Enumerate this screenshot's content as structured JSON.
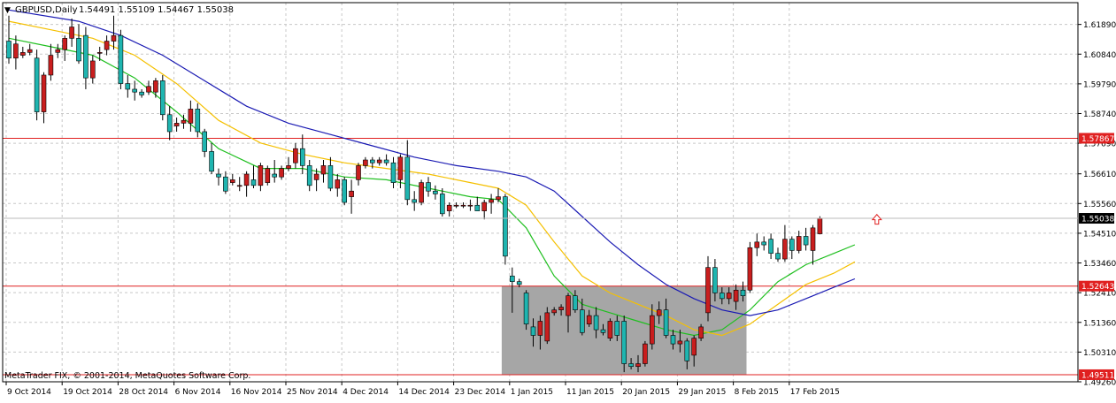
{
  "header": {
    "symbol": "GBPUSD,Daily",
    "quote": "1.54491 1.55109 1.54467 1.55038",
    "menu_glyph": "▼"
  },
  "footer": {
    "copyright": "MetaTrader FIX, © 2001-2014, MetaQuotes Software Corp."
  },
  "price_axis": {
    "ticks": [
      "1.61890",
      "1.60840",
      "1.59790",
      "1.58740",
      "1.57690",
      "1.56610",
      "1.55560",
      "1.54510",
      "1.53460",
      "1.52410",
      "1.51360",
      "1.50310",
      "1.49260"
    ],
    "tick_values": [
      1.6189,
      1.6084,
      1.5979,
      1.5874,
      1.5769,
      1.5661,
      1.5556,
      1.5451,
      1.5346,
      1.5241,
      1.5136,
      1.5031,
      1.4926
    ]
  },
  "time_axis": {
    "ticks": [
      "9 Oct 2014",
      "19 Oct 2014",
      "28 Oct 2014",
      "6 Nov 2014",
      "16 Nov 2014",
      "25 Nov 2014",
      "4 Dec 2014",
      "14 Dec 2014",
      "23 Dec 2014",
      "1 Jan 2015",
      "11 Jan 2015",
      "20 Jan 2015",
      "29 Jan 2015",
      "8 Feb 2015",
      "17 Feb 2015"
    ]
  },
  "levels": [
    {
      "name": "resistance",
      "value": 1.57867,
      "label": "1.57867"
    },
    {
      "name": "support",
      "value": 1.52643,
      "label": "1.52643"
    },
    {
      "name": "low",
      "value": 1.49511,
      "label": "1.49511"
    }
  ],
  "current_price": {
    "value": 1.55038,
    "label": "1.55038"
  },
  "colors": {
    "bull": "#c91e1e",
    "bear": "#1fb5b0",
    "ma_fast": "#1fbf1f",
    "ma_mid": "#f5c000",
    "ma_slow": "#1a1ab3",
    "level": "#e02020",
    "grid": "#c8c8c8",
    "zone": "#a6a6a6",
    "arrow": "#e02020"
  },
  "chart_data": {
    "type": "candlestick",
    "symbol": "GBPUSD",
    "timeframe": "Daily",
    "ylim": [
      1.4926,
      1.6266
    ],
    "candles": [
      {
        "o": 1.613,
        "h": 1.622,
        "l": 1.605,
        "c": 1.607
      },
      {
        "o": 1.607,
        "h": 1.615,
        "l": 1.603,
        "c": 1.612
      },
      {
        "o": 1.608,
        "h": 1.611,
        "l": 1.607,
        "c": 1.609
      },
      {
        "o": 1.609,
        "h": 1.612,
        "l": 1.608,
        "c": 1.61
      },
      {
        "o": 1.607,
        "h": 1.61,
        "l": 1.585,
        "c": 1.588
      },
      {
        "o": 1.588,
        "h": 1.602,
        "l": 1.584,
        "c": 1.601
      },
      {
        "o": 1.601,
        "h": 1.612,
        "l": 1.599,
        "c": 1.608
      },
      {
        "o": 1.609,
        "h": 1.612,
        "l": 1.607,
        "c": 1.61
      },
      {
        "o": 1.61,
        "h": 1.615,
        "l": 1.606,
        "c": 1.614
      },
      {
        "o": 1.614,
        "h": 1.621,
        "l": 1.611,
        "c": 1.618
      },
      {
        "o": 1.614,
        "h": 1.619,
        "l": 1.605,
        "c": 1.606
      },
      {
        "o": 1.615,
        "h": 1.618,
        "l": 1.596,
        "c": 1.6
      },
      {
        "o": 1.6,
        "h": 1.608,
        "l": 1.598,
        "c": 1.606
      },
      {
        "o": 1.609,
        "h": 1.611,
        "l": 1.606,
        "c": 1.609
      },
      {
        "o": 1.61,
        "h": 1.615,
        "l": 1.608,
        "c": 1.613
      },
      {
        "o": 1.613,
        "h": 1.622,
        "l": 1.61,
        "c": 1.615
      },
      {
        "o": 1.615,
        "h": 1.617,
        "l": 1.596,
        "c": 1.598
      },
      {
        "o": 1.598,
        "h": 1.601,
        "l": 1.593,
        "c": 1.596
      },
      {
        "o": 1.596,
        "h": 1.599,
        "l": 1.592,
        "c": 1.595
      },
      {
        "o": 1.595,
        "h": 1.596,
        "l": 1.593,
        "c": 1.594
      },
      {
        "o": 1.595,
        "h": 1.599,
        "l": 1.594,
        "c": 1.597
      },
      {
        "o": 1.595,
        "h": 1.6,
        "l": 1.593,
        "c": 1.599
      },
      {
        "o": 1.599,
        "h": 1.601,
        "l": 1.585,
        "c": 1.587
      },
      {
        "o": 1.587,
        "h": 1.59,
        "l": 1.578,
        "c": 1.581
      },
      {
        "o": 1.583,
        "h": 1.586,
        "l": 1.581,
        "c": 1.584
      },
      {
        "o": 1.584,
        "h": 1.587,
        "l": 1.582,
        "c": 1.585
      },
      {
        "o": 1.584,
        "h": 1.592,
        "l": 1.581,
        "c": 1.589
      },
      {
        "o": 1.589,
        "h": 1.591,
        "l": 1.579,
        "c": 1.581
      },
      {
        "o": 1.581,
        "h": 1.582,
        "l": 1.572,
        "c": 1.574
      },
      {
        "o": 1.574,
        "h": 1.577,
        "l": 1.566,
        "c": 1.567
      },
      {
        "o": 1.566,
        "h": 1.568,
        "l": 1.562,
        "c": 1.565
      },
      {
        "o": 1.565,
        "h": 1.567,
        "l": 1.559,
        "c": 1.56
      },
      {
        "o": 1.563,
        "h": 1.566,
        "l": 1.562,
        "c": 1.564
      },
      {
        "o": 1.562,
        "h": 1.565,
        "l": 1.56,
        "c": 1.562
      },
      {
        "o": 1.562,
        "h": 1.567,
        "l": 1.558,
        "c": 1.566
      },
      {
        "o": 1.564,
        "h": 1.569,
        "l": 1.561,
        "c": 1.562
      },
      {
        "o": 1.562,
        "h": 1.57,
        "l": 1.56,
        "c": 1.569
      },
      {
        "o": 1.563,
        "h": 1.569,
        "l": 1.562,
        "c": 1.568
      },
      {
        "o": 1.566,
        "h": 1.571,
        "l": 1.563,
        "c": 1.565
      },
      {
        "o": 1.565,
        "h": 1.569,
        "l": 1.564,
        "c": 1.568
      },
      {
        "o": 1.568,
        "h": 1.572,
        "l": 1.567,
        "c": 1.569
      },
      {
        "o": 1.57,
        "h": 1.577,
        "l": 1.568,
        "c": 1.575
      },
      {
        "o": 1.575,
        "h": 1.58,
        "l": 1.566,
        "c": 1.569
      },
      {
        "o": 1.569,
        "h": 1.571,
        "l": 1.56,
        "c": 1.562
      },
      {
        "o": 1.564,
        "h": 1.568,
        "l": 1.56,
        "c": 1.566
      },
      {
        "o": 1.566,
        "h": 1.571,
        "l": 1.563,
        "c": 1.569
      },
      {
        "o": 1.569,
        "h": 1.572,
        "l": 1.56,
        "c": 1.561
      },
      {
        "o": 1.561,
        "h": 1.566,
        "l": 1.558,
        "c": 1.564
      },
      {
        "o": 1.564,
        "h": 1.565,
        "l": 1.555,
        "c": 1.556
      },
      {
        "o": 1.558,
        "h": 1.564,
        "l": 1.552,
        "c": 1.56
      },
      {
        "o": 1.564,
        "h": 1.57,
        "l": 1.562,
        "c": 1.569
      },
      {
        "o": 1.569,
        "h": 1.572,
        "l": 1.568,
        "c": 1.571
      },
      {
        "o": 1.571,
        "h": 1.572,
        "l": 1.568,
        "c": 1.57
      },
      {
        "o": 1.57,
        "h": 1.572,
        "l": 1.569,
        "c": 1.571
      },
      {
        "o": 1.571,
        "h": 1.573,
        "l": 1.569,
        "c": 1.57
      },
      {
        "o": 1.57,
        "h": 1.572,
        "l": 1.561,
        "c": 1.563
      },
      {
        "o": 1.564,
        "h": 1.573,
        "l": 1.561,
        "c": 1.572
      },
      {
        "o": 1.572,
        "h": 1.578,
        "l": 1.555,
        "c": 1.557
      },
      {
        "o": 1.557,
        "h": 1.56,
        "l": 1.553,
        "c": 1.556
      },
      {
        "o": 1.556,
        "h": 1.564,
        "l": 1.555,
        "c": 1.563
      },
      {
        "o": 1.563,
        "h": 1.565,
        "l": 1.558,
        "c": 1.56
      },
      {
        "o": 1.56,
        "h": 1.562,
        "l": 1.557,
        "c": 1.559
      },
      {
        "o": 1.559,
        "h": 1.561,
        "l": 1.551,
        "c": 1.552
      },
      {
        "o": 1.553,
        "h": 1.556,
        "l": 1.551,
        "c": 1.555
      },
      {
        "o": 1.555,
        "h": 1.556,
        "l": 1.554,
        "c": 1.555
      },
      {
        "o": 1.555,
        "h": 1.556,
        "l": 1.554,
        "c": 1.555
      },
      {
        "o": 1.555,
        "h": 1.557,
        "l": 1.553,
        "c": 1.555
      },
      {
        "o": 1.555,
        "h": 1.558,
        "l": 1.553,
        "c": 1.553
      },
      {
        "o": 1.553,
        "h": 1.557,
        "l": 1.55,
        "c": 1.556
      },
      {
        "o": 1.556,
        "h": 1.559,
        "l": 1.552,
        "c": 1.557
      },
      {
        "o": 1.557,
        "h": 1.561,
        "l": 1.556,
        "c": 1.558
      },
      {
        "o": 1.558,
        "h": 1.559,
        "l": 1.534,
        "c": 1.537
      },
      {
        "o": 1.53,
        "h": 1.533,
        "l": 1.517,
        "c": 1.528
      },
      {
        "o": 1.528,
        "h": 1.529,
        "l": 1.526,
        "c": 1.527
      },
      {
        "o": 1.524,
        "h": 1.525,
        "l": 1.511,
        "c": 1.513
      },
      {
        "o": 1.512,
        "h": 1.515,
        "l": 1.505,
        "c": 1.509
      },
      {
        "o": 1.509,
        "h": 1.516,
        "l": 1.504,
        "c": 1.514
      },
      {
        "o": 1.507,
        "h": 1.519,
        "l": 1.506,
        "c": 1.517
      },
      {
        "o": 1.517,
        "h": 1.519,
        "l": 1.516,
        "c": 1.518
      },
      {
        "o": 1.518,
        "h": 1.52,
        "l": 1.516,
        "c": 1.519
      },
      {
        "o": 1.516,
        "h": 1.524,
        "l": 1.51,
        "c": 1.523
      },
      {
        "o": 1.523,
        "h": 1.525,
        "l": 1.517,
        "c": 1.518
      },
      {
        "o": 1.518,
        "h": 1.522,
        "l": 1.509,
        "c": 1.51
      },
      {
        "o": 1.513,
        "h": 1.518,
        "l": 1.512,
        "c": 1.516
      },
      {
        "o": 1.516,
        "h": 1.519,
        "l": 1.508,
        "c": 1.511
      },
      {
        "o": 1.511,
        "h": 1.513,
        "l": 1.509,
        "c": 1.51
      },
      {
        "o": 1.508,
        "h": 1.515,
        "l": 1.507,
        "c": 1.514
      },
      {
        "o": 1.514,
        "h": 1.516,
        "l": 1.507,
        "c": 1.509
      },
      {
        "o": 1.514,
        "h": 1.516,
        "l": 1.496,
        "c": 1.499
      },
      {
        "o": 1.499,
        "h": 1.501,
        "l": 1.497,
        "c": 1.498
      },
      {
        "o": 1.498,
        "h": 1.502,
        "l": 1.496,
        "c": 1.499
      },
      {
        "o": 1.499,
        "h": 1.507,
        "l": 1.498,
        "c": 1.506
      },
      {
        "o": 1.506,
        "h": 1.52,
        "l": 1.504,
        "c": 1.516
      },
      {
        "o": 1.516,
        "h": 1.521,
        "l": 1.513,
        "c": 1.518
      },
      {
        "o": 1.518,
        "h": 1.522,
        "l": 1.508,
        "c": 1.509
      },
      {
        "o": 1.509,
        "h": 1.511,
        "l": 1.504,
        "c": 1.506
      },
      {
        "o": 1.506,
        "h": 1.511,
        "l": 1.503,
        "c": 1.507
      },
      {
        "o": 1.507,
        "h": 1.508,
        "l": 1.497,
        "c": 1.5
      },
      {
        "o": 1.502,
        "h": 1.509,
        "l": 1.498,
        "c": 1.508
      },
      {
        "o": 1.508,
        "h": 1.513,
        "l": 1.507,
        "c": 1.512
      },
      {
        "o": 1.517,
        "h": 1.537,
        "l": 1.514,
        "c": 1.533
      },
      {
        "o": 1.533,
        "h": 1.536,
        "l": 1.521,
        "c": 1.524
      },
      {
        "o": 1.524,
        "h": 1.526,
        "l": 1.52,
        "c": 1.522
      },
      {
        "o": 1.522,
        "h": 1.526,
        "l": 1.52,
        "c": 1.524
      },
      {
        "o": 1.521,
        "h": 1.527,
        "l": 1.518,
        "c": 1.525
      },
      {
        "o": 1.525,
        "h": 1.528,
        "l": 1.521,
        "c": 1.523
      },
      {
        "o": 1.525,
        "h": 1.542,
        "l": 1.524,
        "c": 1.54
      },
      {
        "o": 1.54,
        "h": 1.545,
        "l": 1.537,
        "c": 1.542
      },
      {
        "o": 1.542,
        "h": 1.544,
        "l": 1.539,
        "c": 1.541
      },
      {
        "o": 1.543,
        "h": 1.545,
        "l": 1.536,
        "c": 1.538
      },
      {
        "o": 1.538,
        "h": 1.54,
        "l": 1.535,
        "c": 1.536
      },
      {
        "o": 1.536,
        "h": 1.548,
        "l": 1.535,
        "c": 1.543
      },
      {
        "o": 1.543,
        "h": 1.544,
        "l": 1.536,
        "c": 1.539
      },
      {
        "o": 1.539,
        "h": 1.546,
        "l": 1.538,
        "c": 1.544
      },
      {
        "o": 1.544,
        "h": 1.547,
        "l": 1.539,
        "c": 1.541
      },
      {
        "o": 1.539,
        "h": 1.548,
        "l": 1.534,
        "c": 1.547
      },
      {
        "o": 1.5449,
        "h": 1.5511,
        "l": 1.5447,
        "c": 1.5504
      }
    ],
    "moving_averages": [
      {
        "name": "fast",
        "points": [
          [
            0,
            1.614
          ],
          [
            6,
            1.611
          ],
          [
            12,
            1.608
          ],
          [
            18,
            1.6
          ],
          [
            24,
            1.588
          ],
          [
            30,
            1.575
          ],
          [
            36,
            1.568
          ],
          [
            42,
            1.568
          ],
          [
            48,
            1.565
          ],
          [
            54,
            1.564
          ],
          [
            60,
            1.561
          ],
          [
            66,
            1.558
          ],
          [
            70,
            1.557
          ],
          [
            74,
            1.547
          ],
          [
            78,
            1.53
          ],
          [
            82,
            1.52
          ],
          [
            86,
            1.517
          ],
          [
            90,
            1.514
          ],
          [
            94,
            1.511
          ],
          [
            98,
            1.509
          ],
          [
            102,
            1.511
          ],
          [
            106,
            1.518
          ],
          [
            110,
            1.528
          ],
          [
            114,
            1.534
          ],
          [
            118,
            1.538
          ],
          [
            121,
            1.541
          ]
        ]
      },
      {
        "name": "mid",
        "points": [
          [
            0,
            1.62
          ],
          [
            6,
            1.617
          ],
          [
            12,
            1.614
          ],
          [
            18,
            1.608
          ],
          [
            24,
            1.598
          ],
          [
            30,
            1.585
          ],
          [
            36,
            1.577
          ],
          [
            42,
            1.573
          ],
          [
            48,
            1.57
          ],
          [
            54,
            1.568
          ],
          [
            60,
            1.566
          ],
          [
            66,
            1.563
          ],
          [
            70,
            1.561
          ],
          [
            74,
            1.555
          ],
          [
            78,
            1.542
          ],
          [
            82,
            1.53
          ],
          [
            86,
            1.524
          ],
          [
            90,
            1.52
          ],
          [
            94,
            1.516
          ],
          [
            98,
            1.511
          ],
          [
            102,
            1.509
          ],
          [
            106,
            1.513
          ],
          [
            110,
            1.52
          ],
          [
            114,
            1.527
          ],
          [
            118,
            1.531
          ],
          [
            121,
            1.535
          ]
        ]
      },
      {
        "name": "slow",
        "points": [
          [
            0,
            1.624
          ],
          [
            10,
            1.62
          ],
          [
            16,
            1.615
          ],
          [
            22,
            1.608
          ],
          [
            28,
            1.599
          ],
          [
            34,
            1.59
          ],
          [
            40,
            1.584
          ],
          [
            46,
            1.58
          ],
          [
            52,
            1.576
          ],
          [
            58,
            1.572
          ],
          [
            64,
            1.569
          ],
          [
            70,
            1.567
          ],
          [
            74,
            1.565
          ],
          [
            78,
            1.56
          ],
          [
            82,
            1.551
          ],
          [
            86,
            1.542
          ],
          [
            90,
            1.534
          ],
          [
            94,
            1.527
          ],
          [
            98,
            1.522
          ],
          [
            102,
            1.518
          ],
          [
            106,
            1.516
          ],
          [
            110,
            1.518
          ],
          [
            114,
            1.522
          ],
          [
            118,
            1.526
          ],
          [
            121,
            1.529
          ]
        ]
      }
    ],
    "zone": {
      "from_index": 71,
      "to_index": 105,
      "top": 1.5264,
      "bottom": 1.4951
    },
    "arrow": {
      "index": 122,
      "value": 1.5505
    }
  }
}
